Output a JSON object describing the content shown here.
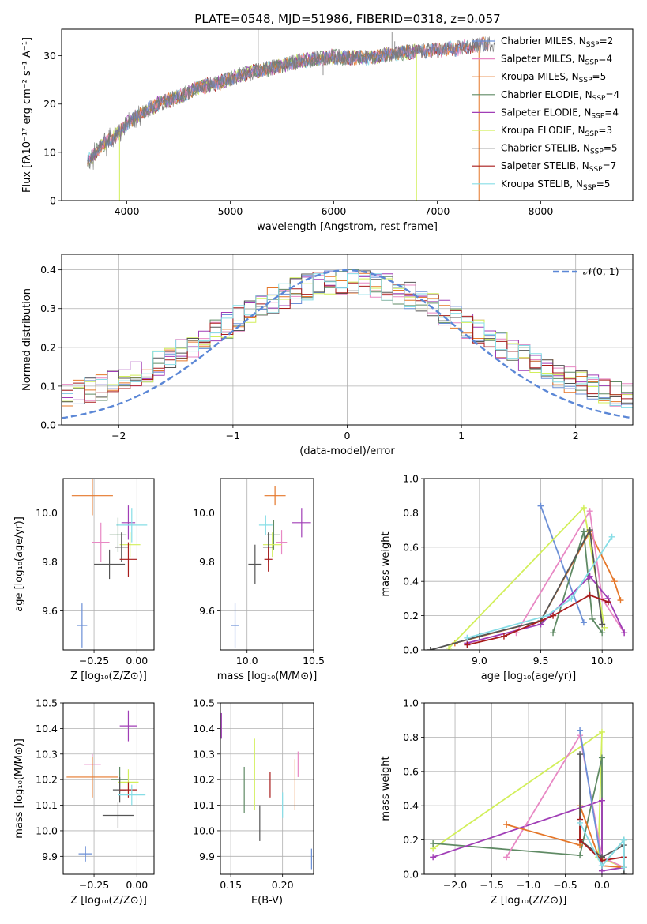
{
  "figure_title": "PLATE=0548, MJD=51986, FIBERID=0318, z=0.057",
  "colors": {
    "chabrier_miles": "#6b8fd6",
    "salpeter_miles": "#e888c4",
    "kroupa_miles": "#e5772a",
    "chabrier_elodie": "#5f8a64",
    "salpeter_elodie": "#a03db6",
    "kroupa_elodie": "#d2ef5a",
    "chabrier_stelib": "#555555",
    "salpeter_stelib": "#a81c1c",
    "kroupa_stelib": "#86dde6"
  },
  "chart_data": [
    {
      "id": "spectrum",
      "type": "line",
      "xlabel": "wavelength [Angstrom, rest frame]",
      "ylabel": "Flux [fλ10⁻¹⁷ erg cm⁻² s⁻¹ A⁻¹]",
      "xlim": [
        3370,
        8890
      ],
      "ylim": [
        0,
        35.5
      ],
      "xticks": [
        4000,
        5000,
        6000,
        7000,
        8000
      ],
      "yticks": [
        0,
        10,
        20,
        30
      ],
      "grid": false,
      "legend_position": "right",
      "legend": [
        {
          "key": "chabrier_miles",
          "label": "Chabrier MILES, N",
          "sub": "SSP",
          "tail": "=2"
        },
        {
          "key": "salpeter_miles",
          "label": "Salpeter MILES, N",
          "sub": "SSP",
          "tail": "=4"
        },
        {
          "key": "kroupa_miles",
          "label": "Kroupa MILES, N",
          "sub": "SSP",
          "tail": "=5"
        },
        {
          "key": "chabrier_elodie",
          "label": "Chabrier ELODIE, N",
          "sub": "SSP",
          "tail": "=4"
        },
        {
          "key": "salpeter_elodie",
          "label": "Salpeter ELODIE, N",
          "sub": "SSP",
          "tail": "=4"
        },
        {
          "key": "kroupa_elodie",
          "label": "Kroupa ELODIE, N",
          "sub": "SSP",
          "tail": "=3"
        },
        {
          "key": "chabrier_stelib",
          "label": "Chabrier STELIB, N",
          "sub": "SSP",
          "tail": "=5"
        },
        {
          "key": "salpeter_stelib",
          "label": "Salpeter STELIB, N",
          "sub": "SSP",
          "tail": "=7"
        },
        {
          "key": "kroupa_stelib",
          "label": "Kroupa STELIB, N",
          "sub": "SSP",
          "tail": "=5"
        }
      ],
      "continuum": [
        [
          3620,
          8
        ],
        [
          3700,
          10
        ],
        [
          3800,
          12
        ],
        [
          3900,
          13.5
        ],
        [
          4000,
          16
        ],
        [
          4100,
          17.5
        ],
        [
          4300,
          20
        ],
        [
          4500,
          21.5
        ],
        [
          4700,
          23.5
        ],
        [
          4900,
          24.5
        ],
        [
          5100,
          26
        ],
        [
          5400,
          27.5
        ],
        [
          5700,
          29
        ],
        [
          6000,
          29.8
        ],
        [
          6300,
          29.5
        ],
        [
          6560,
          30.5
        ],
        [
          6900,
          31
        ],
        [
          7200,
          31.5
        ],
        [
          7500,
          32.5
        ]
      ],
      "model_ranges": {
        "miles": [
          3620,
          7500
        ],
        "elodie": [
          3620,
          6800
        ],
        "stelib": [
          3620,
          7400
        ]
      },
      "data_spikes": [
        [
          5270,
          35.5
        ],
        [
          5897,
          26
        ],
        [
          6563,
          35
        ],
        [
          6590,
          33
        ]
      ],
      "model_drops": [
        [
          3930,
          0
        ],
        [
          6800,
          0
        ],
        [
          7403,
          0
        ]
      ]
    },
    {
      "id": "residuals",
      "type": "histogram",
      "xlabel": "(data-model)/error",
      "ylabel": "Normed distribution",
      "xlim": [
        -2.5,
        2.5
      ],
      "ylim": [
        0,
        0.44
      ],
      "xticks": [
        -2,
        -1,
        0,
        1,
        2
      ],
      "yticks": [
        0.0,
        0.1,
        0.2,
        0.3,
        0.4
      ],
      "grid": true,
      "legend": [
        {
          "label": "𝒩(0, 1)",
          "style": "dashed"
        }
      ],
      "reference": {
        "type": "gaussian",
        "mean": 0,
        "sigma": 1
      }
    },
    {
      "id": "age_vs_Z",
      "type": "errorbar",
      "xlabel": "Z [log₁₀(Z/Z⊙)]",
      "ylabel": "age  [log₁₀(age/yr)]",
      "xlim": [
        -0.43,
        0.1
      ],
      "ylim": [
        9.44,
        10.14
      ],
      "xticks": [
        -0.25,
        0.0
      ],
      "xtick_labels": [
        "−0.25",
        "0.00"
      ],
      "yticks": [
        9.6,
        9.8,
        10.0
      ],
      "grid": true,
      "points": [
        {
          "key": "kroupa_miles",
          "x": -0.26,
          "y": 10.07,
          "xerr": 0.12,
          "yerr": 0.08
        },
        {
          "key": "salpeter_miles",
          "x": -0.21,
          "y": 9.88,
          "xerr": 0.05,
          "yerr": 0.08
        },
        {
          "key": "salpeter_elodie",
          "x": -0.05,
          "y": 9.96,
          "xerr": 0.04,
          "yerr": 0.07
        },
        {
          "key": "kroupa_stelib",
          "x": -0.03,
          "y": 9.95,
          "xerr": 0.09,
          "yerr": 0.07
        },
        {
          "key": "chabrier_elodie",
          "x": -0.11,
          "y": 9.91,
          "xerr": 0.05,
          "yerr": 0.07
        },
        {
          "key": "kroupa_elodie",
          "x": -0.04,
          "y": 9.87,
          "xerr": 0.06,
          "yerr": 0.05
        },
        {
          "key": "chabrier_stelib",
          "x": -0.09,
          "y": 9.86,
          "xerr": 0.04,
          "yerr": 0.06
        },
        {
          "key": "salpeter_stelib",
          "x": -0.05,
          "y": 9.81,
          "xerr": 0.05,
          "yerr": 0.07
        },
        {
          "key": "chabrier_stelib",
          "x": -0.16,
          "y": 9.79,
          "xerr": 0.09,
          "yerr": 0.06
        },
        {
          "key": "chabrier_miles",
          "x": -0.32,
          "y": 9.54,
          "xerr": 0.03,
          "yerr": 0.09
        }
      ]
    },
    {
      "id": "age_vs_mass",
      "type": "errorbar",
      "xlabel": "mass [log₁₀(M/M⊙)]",
      "ylabel": "",
      "xlim": [
        9.8,
        10.5
      ],
      "ylim": [
        9.44,
        10.14
      ],
      "xticks": [
        10.0,
        10.5
      ],
      "xtick_labels": [
        "10.0",
        "10.5"
      ],
      "yticks": [
        9.6,
        9.8,
        10.0
      ],
      "grid": true,
      "points": [
        {
          "key": "kroupa_miles",
          "x": 10.21,
          "y": 10.07,
          "xerr": 0.08,
          "yerr": 0.04
        },
        {
          "key": "salpeter_elodie",
          "x": 10.41,
          "y": 9.96,
          "xerr": 0.07,
          "yerr": 0.06
        },
        {
          "key": "kroupa_stelib",
          "x": 10.14,
          "y": 9.95,
          "xerr": 0.05,
          "yerr": 0.04
        },
        {
          "key": "chabrier_elodie",
          "x": 10.2,
          "y": 9.91,
          "xerr": 0.05,
          "yerr": 0.06
        },
        {
          "key": "salpeter_miles",
          "x": 10.26,
          "y": 9.88,
          "xerr": 0.04,
          "yerr": 0.05
        },
        {
          "key": "kroupa_elodie",
          "x": 10.19,
          "y": 9.87,
          "xerr": 0.07,
          "yerr": 0.05
        },
        {
          "key": "chabrier_stelib",
          "x": 10.16,
          "y": 9.86,
          "xerr": 0.04,
          "yerr": 0.06
        },
        {
          "key": "salpeter_stelib",
          "x": 10.16,
          "y": 9.81,
          "xerr": 0.03,
          "yerr": 0.05
        },
        {
          "key": "chabrier_stelib",
          "x": 10.06,
          "y": 9.79,
          "xerr": 0.05,
          "yerr": 0.08
        },
        {
          "key": "chabrier_miles",
          "x": 9.91,
          "y": 9.54,
          "xerr": 0.03,
          "yerr": 0.09
        }
      ]
    },
    {
      "id": "massweight_vs_age",
      "type": "line",
      "xlabel": "age  [log₁₀(age/yr)]",
      "ylabel": "mass weight",
      "xlim": [
        8.55,
        10.25
      ],
      "ylim": [
        0,
        1.0
      ],
      "xticks": [
        9.0,
        9.5,
        10.0
      ],
      "xtick_labels": [
        "9.0",
        "9.5",
        "10.0"
      ],
      "yticks": [
        0.0,
        0.2,
        0.4,
        0.6,
        0.8,
        1.0
      ],
      "grid": true,
      "series": [
        {
          "key": "chabrier_miles",
          "x": [
            9.5,
            9.85
          ],
          "y": [
            0.84,
            0.16
          ]
        },
        {
          "key": "kroupa_miles",
          "x": [
            8.8,
            9.5,
            9.9,
            10.1,
            10.15
          ],
          "y": [
            0.04,
            0.17,
            0.69,
            0.4,
            0.29
          ]
        },
        {
          "key": "salpeter_miles",
          "x": [
            9.3,
            9.9,
            10.0,
            10.18
          ],
          "y": [
            0.1,
            0.81,
            0.3,
            0.1
          ]
        },
        {
          "key": "chabrier_elodie",
          "x": [
            9.6,
            9.85,
            9.92,
            10.0
          ],
          "y": [
            0.1,
            0.69,
            0.18,
            0.1
          ]
        },
        {
          "key": "salpeter_elodie",
          "x": [
            8.9,
            9.5,
            9.9,
            10.05,
            10.18
          ],
          "y": [
            0.04,
            0.15,
            0.43,
            0.3,
            0.1
          ]
        },
        {
          "key": "kroupa_elodie",
          "x": [
            8.75,
            9.85,
            10.02
          ],
          "y": [
            0.01,
            0.83,
            0.13
          ]
        },
        {
          "key": "chabrier_stelib",
          "x": [
            8.6,
            9.0,
            9.5,
            9.9,
            10.0
          ],
          "y": [
            0.0,
            0.08,
            0.17,
            0.7,
            0.15
          ]
        },
        {
          "key": "salpeter_stelib",
          "x": [
            8.9,
            9.2,
            9.6,
            9.9,
            10.05
          ],
          "y": [
            0.03,
            0.08,
            0.2,
            0.32,
            0.28
          ]
        },
        {
          "key": "kroupa_stelib",
          "x": [
            8.9,
            9.55,
            9.75,
            10.08
          ],
          "y": [
            0.07,
            0.2,
            0.3,
            0.66
          ]
        }
      ]
    },
    {
      "id": "mass_vs_Z",
      "type": "errorbar",
      "xlabel": "Z [log₁₀(Z/Z⊙)]",
      "ylabel": "mass [log₁₀(M/M⊙)]",
      "xlim": [
        -0.43,
        0.1
      ],
      "ylim": [
        9.83,
        10.5
      ],
      "xticks": [
        -0.25,
        0.0
      ],
      "xtick_labels": [
        "−0.25",
        "0.00"
      ],
      "yticks": [
        9.9,
        10.0,
        10.1,
        10.2,
        10.3,
        10.4,
        10.5
      ],
      "grid": true,
      "points": [
        {
          "key": "salpeter_elodie",
          "x": -0.05,
          "y": 10.41,
          "xerr": 0.05,
          "yerr": 0.06
        },
        {
          "key": "salpeter_miles",
          "x": -0.26,
          "y": 10.26,
          "xerr": 0.05,
          "yerr": 0.04
        },
        {
          "key": "kroupa_miles",
          "x": -0.26,
          "y": 10.21,
          "xerr": 0.15,
          "yerr": 0.08
        },
        {
          "key": "chabrier_elodie",
          "x": -0.1,
          "y": 10.2,
          "xerr": 0.05,
          "yerr": 0.05
        },
        {
          "key": "kroupa_elodie",
          "x": -0.05,
          "y": 10.19,
          "xerr": 0.06,
          "yerr": 0.05
        },
        {
          "key": "chabrier_stelib",
          "x": -0.1,
          "y": 10.16,
          "xerr": 0.04,
          "yerr": 0.05
        },
        {
          "key": "salpeter_stelib",
          "x": -0.05,
          "y": 10.16,
          "xerr": 0.05,
          "yerr": 0.03
        },
        {
          "key": "kroupa_stelib",
          "x": -0.03,
          "y": 10.14,
          "xerr": 0.08,
          "yerr": 0.04
        },
        {
          "key": "chabrier_stelib",
          "x": -0.11,
          "y": 10.06,
          "xerr": 0.09,
          "yerr": 0.05
        },
        {
          "key": "chabrier_miles",
          "x": -0.3,
          "y": 9.91,
          "xerr": 0.04,
          "yerr": 0.03
        }
      ]
    },
    {
      "id": "mass_vs_ebv",
      "type": "errorbar",
      "xlabel": "E(B-V)",
      "ylabel": "",
      "xlim": [
        0.14,
        0.23
      ],
      "ylim": [
        9.83,
        10.5
      ],
      "xticks": [
        0.15,
        0.2
      ],
      "xtick_labels": [
        "0.15",
        "0.20"
      ],
      "yticks": [
        9.9,
        10.0,
        10.1,
        10.2,
        10.3,
        10.4,
        10.5
      ],
      "grid": true,
      "points": [
        {
          "key": "salpeter_elodie",
          "x": 0.141,
          "y": 10.41,
          "xerr": 0,
          "yerr": 0.05
        },
        {
          "key": "chabrier_elodie",
          "x": 0.163,
          "y": 10.16,
          "xerr": 0,
          "yerr": 0.09
        },
        {
          "key": "kroupa_elodie",
          "x": 0.173,
          "y": 10.22,
          "xerr": 0,
          "yerr": 0.14
        },
        {
          "key": "chabrier_stelib",
          "x": 0.178,
          "y": 10.03,
          "xerr": 0,
          "yerr": 0.07
        },
        {
          "key": "salpeter_stelib",
          "x": 0.188,
          "y": 10.18,
          "xerr": 0,
          "yerr": 0.05
        },
        {
          "key": "kroupa_stelib",
          "x": 0.2,
          "y": 10.1,
          "xerr": 0,
          "yerr": 0.05
        },
        {
          "key": "kroupa_miles",
          "x": 0.212,
          "y": 10.18,
          "xerr": 0,
          "yerr": 0.1
        },
        {
          "key": "salpeter_miles",
          "x": 0.215,
          "y": 10.26,
          "xerr": 0,
          "yerr": 0.05
        },
        {
          "key": "chabrier_miles",
          "x": 0.228,
          "y": 9.89,
          "xerr": 0,
          "yerr": 0.04
        }
      ]
    },
    {
      "id": "massweight_vs_Z",
      "type": "line",
      "xlabel": "Z [log₁₀(Z/Z⊙)]",
      "ylabel": "mass weight",
      "xlim": [
        -2.42,
        0.42
      ],
      "ylim": [
        0,
        1.0
      ],
      "xticks": [
        -2.0,
        -1.5,
        -1.0,
        -0.5,
        0.0
      ],
      "xtick_labels": [
        "−2.0",
        "−1.5",
        "−1.0",
        "−0.5",
        "0.0"
      ],
      "yticks": [
        0.0,
        0.2,
        0.4,
        0.6,
        0.8,
        1.0
      ],
      "grid": true,
      "series": [
        {
          "key": "kroupa_elodie",
          "x": [
            -2.3,
            0.0,
            -0.05,
            0.3
          ],
          "y": [
            0.15,
            0.83,
            0.1,
            0.04
          ]
        },
        {
          "key": "chabrier_elodie",
          "x": [
            -2.3,
            -0.3,
            0.0,
            0.0,
            0.3
          ],
          "y": [
            0.18,
            0.11,
            0.68,
            0.05,
            0.2
          ]
        },
        {
          "key": "salpeter_elodie",
          "x": [
            -2.3,
            0.0,
            0.0,
            0.3
          ],
          "y": [
            0.1,
            0.43,
            0.02,
            0.04
          ]
        },
        {
          "key": "salpeter_miles",
          "x": [
            -1.3,
            -0.3,
            0.0,
            0.3
          ],
          "y": [
            0.1,
            0.81,
            0.1,
            0.04
          ]
        },
        {
          "key": "kroupa_miles",
          "x": [
            -1.3,
            -0.3,
            -0.3,
            0.0,
            0.3
          ],
          "y": [
            0.29,
            0.17,
            0.4,
            0.05,
            0.04
          ]
        },
        {
          "key": "chabrier_miles",
          "x": [
            -0.3,
            0.0
          ],
          "y": [
            0.84,
            0.05
          ]
        },
        {
          "key": "chabrier_stelib",
          "x": [
            -0.3,
            -0.3,
            0.0,
            0.3,
            0.3
          ],
          "y": [
            0.7,
            0.2,
            0.1,
            0.17,
            0.0
          ]
        },
        {
          "key": "salpeter_stelib",
          "x": [
            -0.3,
            -0.3,
            0.0,
            0.3
          ],
          "y": [
            0.32,
            0.2,
            0.08,
            0.1
          ]
        },
        {
          "key": "kroupa_stelib",
          "x": [
            -0.3,
            0.0,
            0.3,
            0.3
          ],
          "y": [
            0.3,
            0.05,
            0.2,
            0.04
          ]
        }
      ]
    }
  ]
}
